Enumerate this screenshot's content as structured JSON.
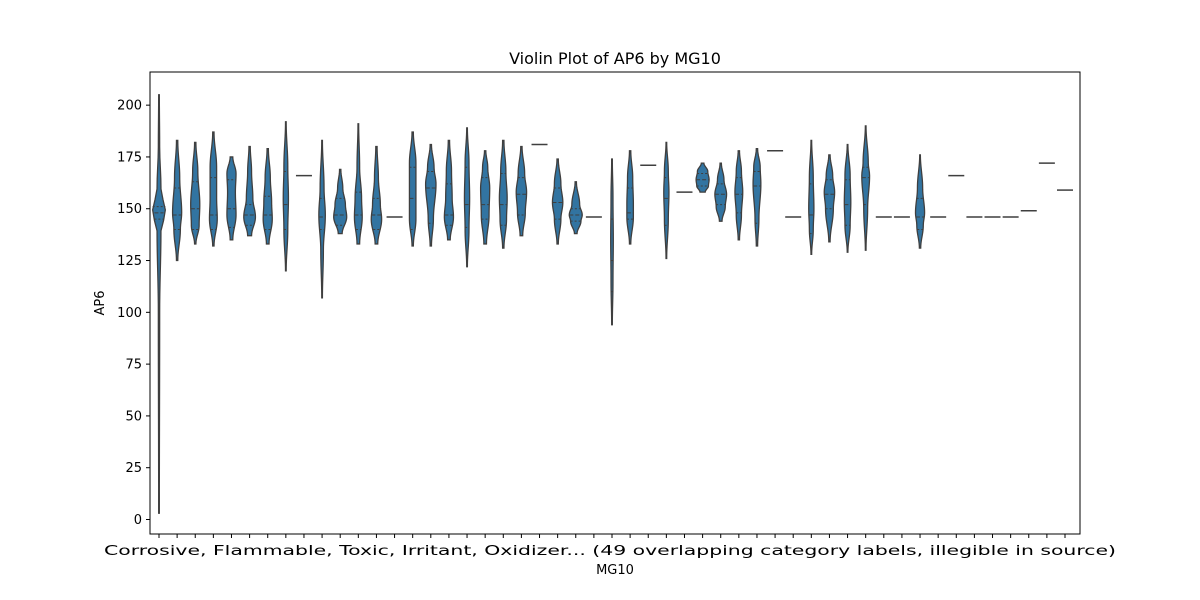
{
  "chart_data": {
    "type": "violin",
    "title": "Violin Plot of AP6 by MG10",
    "xlabel": "MG10",
    "ylabel": "AP6",
    "ylim": [
      -7,
      216
    ],
    "yticks": [
      0,
      25,
      50,
      75,
      100,
      125,
      150,
      175,
      200
    ],
    "grid": false,
    "legend": "none",
    "x_tick_text": "Corrosive, Flammable, Toxic, Irritant, Oxidizer... (49 overlapping category labels, illegible in source)",
    "categories_count": 51,
    "violins": [
      {
        "index": 0,
        "min": 3,
        "max": 205,
        "q1": 145,
        "median": 148,
        "q3": 151,
        "widths": [
          [
            3,
            0.05
          ],
          [
            100,
            0.1
          ],
          [
            140,
            0.3
          ],
          [
            148,
            1.0
          ],
          [
            160,
            0.3
          ],
          [
            180,
            0.1
          ],
          [
            205,
            0.05
          ]
        ]
      },
      {
        "index": 1,
        "min": 125,
        "max": 183,
        "q1": 140,
        "median": 147,
        "q3": 160,
        "widths": [
          [
            125,
            0.1
          ],
          [
            140,
            0.5
          ],
          [
            148,
            0.7
          ],
          [
            165,
            0.4
          ],
          [
            183,
            0.1
          ]
        ]
      },
      {
        "index": 2,
        "min": 133,
        "max": 182,
        "q1": 140,
        "median": 150,
        "q3": 163,
        "widths": [
          [
            133,
            0.1
          ],
          [
            142,
            0.6
          ],
          [
            152,
            0.7
          ],
          [
            168,
            0.4
          ],
          [
            182,
            0.1
          ]
        ]
      },
      {
        "index": 3,
        "min": 132,
        "max": 187,
        "q1": 140,
        "median": 147,
        "q3": 165,
        "widths": [
          [
            132,
            0.1
          ],
          [
            145,
            0.6
          ],
          [
            155,
            0.5
          ],
          [
            170,
            0.5
          ],
          [
            187,
            0.1
          ]
        ]
      },
      {
        "index": 4,
        "min": 135,
        "max": 175,
        "q1": 141,
        "median": 150,
        "q3": 164,
        "widths": [
          [
            135,
            0.2
          ],
          [
            147,
            0.7
          ],
          [
            158,
            0.6
          ],
          [
            167,
            0.7
          ],
          [
            175,
            0.2
          ]
        ]
      },
      {
        "index": 5,
        "min": 137,
        "max": 180,
        "q1": 142,
        "median": 147,
        "q3": 152,
        "widths": [
          [
            137,
            0.3
          ],
          [
            146,
            0.9
          ],
          [
            155,
            0.5
          ],
          [
            168,
            0.3
          ],
          [
            180,
            0.1
          ]
        ]
      },
      {
        "index": 6,
        "min": 133,
        "max": 179,
        "q1": 140,
        "median": 147,
        "q3": 156,
        "widths": [
          [
            133,
            0.2
          ],
          [
            145,
            0.7
          ],
          [
            153,
            0.6
          ],
          [
            165,
            0.4
          ],
          [
            179,
            0.1
          ]
        ]
      },
      {
        "index": 7,
        "min": 120,
        "max": 192,
        "q1": 140,
        "median": 152,
        "q3": 168,
        "widths": [
          [
            120,
            0.05
          ],
          [
            140,
            0.3
          ],
          [
            155,
            0.4
          ],
          [
            170,
            0.3
          ],
          [
            192,
            0.05
          ]
        ]
      },
      {
        "index": 8,
        "min": 166,
        "max": 166,
        "single": true
      },
      {
        "index": 9,
        "min": 107,
        "max": 183,
        "q1": 140,
        "median": 146,
        "q3": 155,
        "widths": [
          [
            107,
            0.05
          ],
          [
            130,
            0.2
          ],
          [
            147,
            0.5
          ],
          [
            160,
            0.3
          ],
          [
            183,
            0.05
          ]
        ]
      },
      {
        "index": 10,
        "min": 138,
        "max": 169,
        "q1": 142,
        "median": 147,
        "q3": 155,
        "widths": [
          [
            138,
            0.3
          ],
          [
            146,
            1.0
          ],
          [
            152,
            0.8
          ],
          [
            160,
            0.4
          ],
          [
            169,
            0.1
          ]
        ]
      },
      {
        "index": 11,
        "min": 133,
        "max": 191,
        "q1": 140,
        "median": 147,
        "q3": 158,
        "widths": [
          [
            133,
            0.2
          ],
          [
            146,
            0.6
          ],
          [
            155,
            0.5
          ],
          [
            170,
            0.2
          ],
          [
            191,
            0.05
          ]
        ]
      },
      {
        "index": 12,
        "min": 133,
        "max": 180,
        "q1": 140,
        "median": 147,
        "q3": 155,
        "widths": [
          [
            133,
            0.2
          ],
          [
            145,
            0.8
          ],
          [
            152,
            0.6
          ],
          [
            165,
            0.3
          ],
          [
            180,
            0.1
          ]
        ]
      },
      {
        "index": 13,
        "min": 146,
        "max": 146,
        "single": true
      },
      {
        "index": 14,
        "min": 132,
        "max": 187,
        "q1": 140,
        "median": 155,
        "q3": 170,
        "widths": [
          [
            132,
            0.1
          ],
          [
            145,
            0.5
          ],
          [
            158,
            0.5
          ],
          [
            172,
            0.5
          ],
          [
            187,
            0.1
          ]
        ]
      },
      {
        "index": 15,
        "min": 132,
        "max": 181,
        "q1": 143,
        "median": 160,
        "q3": 168,
        "widths": [
          [
            132,
            0.1
          ],
          [
            145,
            0.4
          ],
          [
            162,
            0.8
          ],
          [
            170,
            0.5
          ],
          [
            181,
            0.1
          ]
        ]
      },
      {
        "index": 16,
        "min": 135,
        "max": 183,
        "q1": 142,
        "median": 147,
        "q3": 162,
        "widths": [
          [
            135,
            0.2
          ],
          [
            146,
            0.7
          ],
          [
            155,
            0.5
          ],
          [
            168,
            0.4
          ],
          [
            183,
            0.1
          ]
        ]
      },
      {
        "index": 17,
        "min": 122,
        "max": 189,
        "q1": 141,
        "median": 152,
        "q3": 170,
        "widths": [
          [
            122,
            0.05
          ],
          [
            140,
            0.3
          ],
          [
            155,
            0.4
          ],
          [
            172,
            0.3
          ],
          [
            189,
            0.05
          ]
        ]
      },
      {
        "index": 18,
        "min": 133,
        "max": 178,
        "q1": 145,
        "median": 152,
        "q3": 165,
        "widths": [
          [
            133,
            0.2
          ],
          [
            147,
            0.6
          ],
          [
            160,
            0.7
          ],
          [
            170,
            0.4
          ],
          [
            178,
            0.1
          ]
        ]
      },
      {
        "index": 19,
        "min": 131,
        "max": 183,
        "q1": 142,
        "median": 152,
        "q3": 167,
        "widths": [
          [
            131,
            0.1
          ],
          [
            145,
            0.5
          ],
          [
            155,
            0.6
          ],
          [
            168,
            0.4
          ],
          [
            183,
            0.1
          ]
        ]
      },
      {
        "index": 20,
        "min": 137,
        "max": 180,
        "q1": 147,
        "median": 157,
        "q3": 165,
        "widths": [
          [
            137,
            0.2
          ],
          [
            148,
            0.6
          ],
          [
            158,
            0.8
          ],
          [
            167,
            0.5
          ],
          [
            180,
            0.1
          ]
        ]
      },
      {
        "index": 21,
        "min": 181,
        "max": 181,
        "single": true
      },
      {
        "index": 22,
        "min": 133,
        "max": 174,
        "q1": 145,
        "median": 153,
        "q3": 160,
        "widths": [
          [
            133,
            0.1
          ],
          [
            145,
            0.5
          ],
          [
            153,
            0.8
          ],
          [
            162,
            0.5
          ],
          [
            174,
            0.1
          ]
        ]
      },
      {
        "index": 23,
        "min": 138,
        "max": 163,
        "q1": 144,
        "median": 147,
        "q3": 150,
        "widths": [
          [
            138,
            0.2
          ],
          [
            144,
            0.8
          ],
          [
            147,
            1.0
          ],
          [
            152,
            0.6
          ],
          [
            163,
            0.1
          ]
        ]
      },
      {
        "index": 24,
        "min": 146,
        "max": 146,
        "single": true
      },
      {
        "index": 25,
        "min": 94,
        "max": 174,
        "q1": 110,
        "median": 125,
        "q3": 145,
        "widths": [
          [
            94,
            0.05
          ],
          [
            115,
            0.15
          ],
          [
            135,
            0.2
          ],
          [
            155,
            0.15
          ],
          [
            174,
            0.05
          ]
        ]
      },
      {
        "index": 26,
        "min": 133,
        "max": 178,
        "q1": 145,
        "median": 148,
        "q3": 160,
        "widths": [
          [
            133,
            0.1
          ],
          [
            146,
            0.5
          ],
          [
            152,
            0.5
          ],
          [
            165,
            0.4
          ],
          [
            178,
            0.1
          ]
        ]
      },
      {
        "index": 27,
        "min": 171,
        "max": 171,
        "single": true
      },
      {
        "index": 28,
        "min": 126,
        "max": 182,
        "q1": 142,
        "median": 155,
        "q3": 165,
        "widths": [
          [
            126,
            0.05
          ],
          [
            145,
            0.3
          ],
          [
            158,
            0.4
          ],
          [
            168,
            0.3
          ],
          [
            182,
            0.05
          ]
        ]
      },
      {
        "index": 29,
        "min": 158,
        "max": 158,
        "single": true
      },
      {
        "index": 30,
        "min": 158,
        "max": 172,
        "q1": 161,
        "median": 164,
        "q3": 167,
        "widths": [
          [
            158,
            0.4
          ],
          [
            161,
            0.9
          ],
          [
            164,
            1.0
          ],
          [
            168,
            0.8
          ],
          [
            172,
            0.2
          ]
        ]
      },
      {
        "index": 31,
        "min": 144,
        "max": 172,
        "q1": 152,
        "median": 157,
        "q3": 162,
        "widths": [
          [
            144,
            0.2
          ],
          [
            151,
            0.7
          ],
          [
            157,
            0.9
          ],
          [
            164,
            0.5
          ],
          [
            172,
            0.1
          ]
        ]
      },
      {
        "index": 32,
        "min": 135,
        "max": 178,
        "q1": 148,
        "median": 157,
        "q3": 165,
        "widths": [
          [
            135,
            0.1
          ],
          [
            147,
            0.4
          ],
          [
            158,
            0.6
          ],
          [
            168,
            0.4
          ],
          [
            178,
            0.1
          ]
        ]
      },
      {
        "index": 33,
        "min": 132,
        "max": 179,
        "q1": 143,
        "median": 161,
        "q3": 168,
        "widths": [
          [
            132,
            0.1
          ],
          [
            145,
            0.3
          ],
          [
            162,
            0.6
          ],
          [
            170,
            0.5
          ],
          [
            179,
            0.1
          ]
        ]
      },
      {
        "index": 34,
        "min": 178,
        "max": 178,
        "single": true
      },
      {
        "index": 35,
        "min": 146,
        "max": 146,
        "single": true
      },
      {
        "index": 36,
        "min": 128,
        "max": 183,
        "q1": 138,
        "median": 147,
        "q3": 162,
        "widths": [
          [
            128,
            0.05
          ],
          [
            140,
            0.3
          ],
          [
            150,
            0.4
          ],
          [
            165,
            0.3
          ],
          [
            183,
            0.05
          ]
        ]
      },
      {
        "index": 37,
        "min": 134,
        "max": 176,
        "q1": 150,
        "median": 157,
        "q3": 164,
        "widths": [
          [
            134,
            0.1
          ],
          [
            150,
            0.6
          ],
          [
            158,
            0.8
          ],
          [
            166,
            0.5
          ],
          [
            176,
            0.1
          ]
        ]
      },
      {
        "index": 38,
        "min": 129,
        "max": 181,
        "q1": 142,
        "median": 152,
        "q3": 164,
        "widths": [
          [
            129,
            0.05
          ],
          [
            142,
            0.4
          ],
          [
            153,
            0.5
          ],
          [
            166,
            0.4
          ],
          [
            181,
            0.05
          ]
        ]
      },
      {
        "index": 39,
        "min": 130,
        "max": 190,
        "q1": 152,
        "median": 165,
        "q3": 170,
        "widths": [
          [
            130,
            0.05
          ],
          [
            150,
            0.3
          ],
          [
            166,
            0.6
          ],
          [
            172,
            0.4
          ],
          [
            190,
            0.05
          ]
        ]
      },
      {
        "index": 40,
        "min": 146,
        "max": 146,
        "single": true
      },
      {
        "index": 41,
        "min": 146,
        "max": 146,
        "single": true
      },
      {
        "index": 42,
        "min": 131,
        "max": 176,
        "q1": 140,
        "median": 146,
        "q3": 155,
        "widths": [
          [
            131,
            0.1
          ],
          [
            142,
            0.5
          ],
          [
            148,
            0.7
          ],
          [
            160,
            0.4
          ],
          [
            176,
            0.05
          ]
        ]
      },
      {
        "index": 43,
        "min": 146,
        "max": 146,
        "single": true
      },
      {
        "index": 44,
        "min": 166,
        "max": 166,
        "single": true
      },
      {
        "index": 45,
        "min": 146,
        "max": 146,
        "single": true
      },
      {
        "index": 46,
        "min": 146,
        "max": 146,
        "single": true
      },
      {
        "index": 47,
        "min": 146,
        "max": 146,
        "single": true
      },
      {
        "index": 48,
        "min": 149,
        "max": 149,
        "single": true
      },
      {
        "index": 49,
        "min": 172,
        "max": 172,
        "single": true
      },
      {
        "index": 50,
        "min": 159,
        "max": 159,
        "single": true
      }
    ],
    "colors": {
      "fill": "#3274a1",
      "edge": "#3f3f3f",
      "axis": "#000000"
    }
  }
}
